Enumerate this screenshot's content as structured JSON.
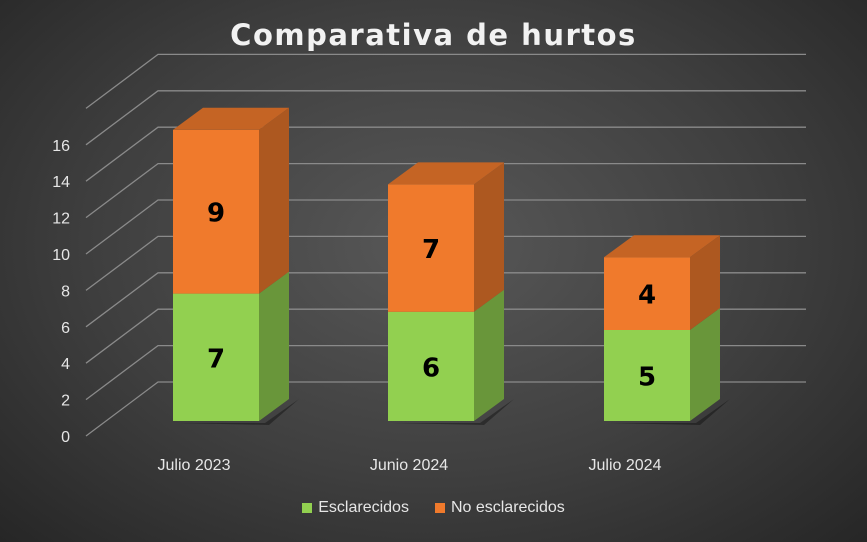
{
  "chart_data": {
    "type": "bar",
    "stacked": true,
    "three_d": true,
    "title": "Comparativa de hurtos",
    "categories": [
      "Julio 2023",
      "Junio 2024",
      "Julio 2024"
    ],
    "series": [
      {
        "name": "Esclarecidos",
        "values": [
          7,
          6,
          5
        ],
        "color": "#92d050"
      },
      {
        "name": "No esclarecidos",
        "values": [
          9,
          7,
          4
        ],
        "color": "#f07a2c"
      }
    ],
    "yticks": [
      "0",
      "2",
      "4",
      "6",
      "8",
      "10",
      "12",
      "14",
      "16"
    ],
    "ylim": [
      0,
      16
    ],
    "grid": true,
    "legend_position": "bottom"
  }
}
